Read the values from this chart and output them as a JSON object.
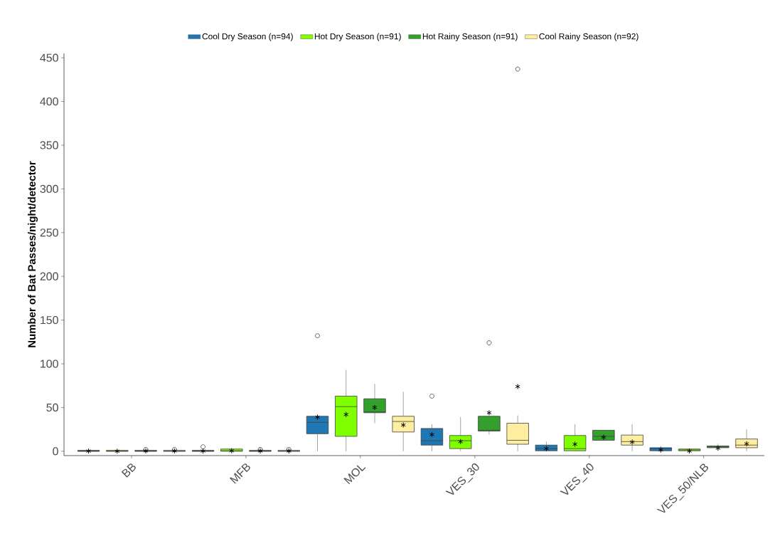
{
  "chart_data": {
    "type": "box",
    "ylabel": "Number of Bat Passes/night/detector",
    "categories": [
      "BB",
      "MFB",
      "MOL",
      "VES_30",
      "VES_40",
      "VES_50/NLB"
    ],
    "ylim": [
      -5,
      455
    ],
    "yticks": [
      0,
      50,
      100,
      150,
      200,
      250,
      300,
      350,
      400,
      450
    ],
    "legend": "top",
    "grid": false,
    "series": [
      {
        "name": "Cool Dry Season (n=94)",
        "color": "#1f78b4",
        "boxes": [
          {
            "low": 0,
            "q1": 0,
            "median": 0,
            "q3": 1,
            "high": 1,
            "mean": 0.2
          },
          {
            "low": 0,
            "q1": 0,
            "median": 0,
            "q3": 1,
            "high": 1,
            "mean": 0.2,
            "outliers": [
              5
            ]
          },
          {
            "low": 0,
            "q1": 20,
            "median": 33,
            "q3": 40,
            "high": 40,
            "mean": 39,
            "outliers": [
              132
            ]
          },
          {
            "low": 0,
            "q1": 7,
            "median": 12,
            "q3": 26,
            "high": 31,
            "mean": 19,
            "outliers": [
              63
            ]
          },
          {
            "low": 0,
            "q1": 0.5,
            "median": 3,
            "q3": 7,
            "high": 11,
            "mean": 3
          },
          {
            "low": 0,
            "q1": 0.5,
            "median": 3,
            "q3": 4,
            "high": 6,
            "mean": 1.5
          }
        ]
      },
      {
        "name": "Hot Dry Season (n=91)",
        "color": "#7fff00",
        "boxes": [
          {
            "low": 0,
            "q1": 0,
            "median": 0,
            "q3": 1,
            "high": 1,
            "mean": 0
          },
          {
            "low": 0,
            "q1": 0,
            "median": 0.5,
            "q3": 2.5,
            "high": 2.5,
            "mean": 0.5
          },
          {
            "low": 0,
            "q1": 17,
            "median": 51,
            "q3": 63,
            "high": 93,
            "mean": 42
          },
          {
            "low": 0,
            "q1": 3,
            "median": 12,
            "q3": 18,
            "high": 39,
            "mean": 11
          },
          {
            "low": 0,
            "q1": 0.5,
            "median": 3,
            "q3": 18,
            "high": 31,
            "mean": 8
          },
          {
            "low": 0,
            "q1": 0.5,
            "median": 1.5,
            "q3": 2.5,
            "high": 2.5,
            "mean": 0.2
          }
        ]
      },
      {
        "name": "Hot Rainy Season (n=91)",
        "color": "#33a02c",
        "boxes": [
          {
            "low": 0,
            "q1": 0,
            "median": 0,
            "q3": 1,
            "high": 1,
            "mean": 0.3,
            "outliers": [
              2
            ]
          },
          {
            "low": 0,
            "q1": 0,
            "median": 0,
            "q3": 1,
            "high": 1,
            "mean": 0.3,
            "outliers": [
              2
            ]
          },
          {
            "low": 32,
            "q1": 44,
            "median": 45,
            "q3": 60,
            "high": 77,
            "mean": 50
          },
          {
            "low": 19,
            "q1": 23,
            "median": 24,
            "q3": 40,
            "high": 40,
            "mean": 44,
            "outliers": [
              124
            ]
          },
          {
            "low": 12.5,
            "q1": 12.5,
            "median": 17,
            "q3": 24,
            "high": 24,
            "mean": 16
          },
          {
            "low": 4,
            "q1": 4,
            "median": 5,
            "q3": 6,
            "high": 8.5,
            "mean": 3.5
          }
        ]
      },
      {
        "name": "Cool Rainy Season (n=92)",
        "color": "#ffeda0",
        "boxes": [
          {
            "low": 0,
            "q1": 0,
            "median": 0,
            "q3": 1,
            "high": 1,
            "mean": 0.3,
            "outliers": [
              2
            ]
          },
          {
            "low": 0,
            "q1": 0,
            "median": 0,
            "q3": 1,
            "high": 1,
            "mean": 0.3,
            "outliers": [
              2
            ]
          },
          {
            "low": 0,
            "q1": 22,
            "median": 34,
            "q3": 40,
            "high": 68,
            "mean": 30
          },
          {
            "low": 0,
            "q1": 8,
            "median": 12.5,
            "q3": 32,
            "high": 41,
            "mean": 74,
            "outliers": [
              437
            ]
          },
          {
            "low": 0,
            "q1": 7,
            "median": 11,
            "q3": 18.5,
            "high": 31,
            "mean": 10.5
          },
          {
            "low": 0,
            "q1": 4,
            "median": 7,
            "q3": 14,
            "high": 25,
            "mean": 8.5
          }
        ]
      }
    ]
  }
}
